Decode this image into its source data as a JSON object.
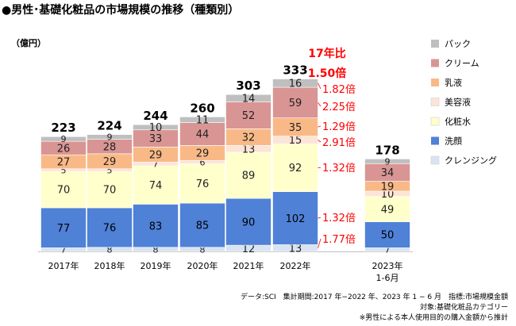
{
  "title": "●男性･基礎化粧品の市場規模の推移（種類別）",
  "unit_label": "（億円）",
  "colors": {
    "pack": "#bfbfbf",
    "cream": "#d99594",
    "milk": "#f9b987",
    "beauty": "#fce4d6",
    "lotion": "#ffffcc",
    "cleanser": "#4f81d6",
    "cleansing": "#d9e3f1",
    "red": "#ff0000"
  },
  "chart_data": {
    "type": "bar",
    "stacked": true,
    "ylabel": "（億円）",
    "categories": [
      "2017年",
      "2018年",
      "2019年",
      "2020年",
      "2021年",
      "2022年",
      "2023年\n1-6月"
    ],
    "totals": [
      223,
      224,
      244,
      260,
      303,
      333,
      178
    ],
    "series": [
      {
        "name": "クレンジング",
        "key": "cleansing",
        "values": [
          7,
          8,
          8,
          8,
          12,
          13,
          7
        ]
      },
      {
        "name": "洗顔",
        "key": "cleanser",
        "values": [
          77,
          76,
          83,
          85,
          90,
          102,
          50
        ]
      },
      {
        "name": "化粧水",
        "key": "lotion",
        "values": [
          70,
          70,
          74,
          76,
          89,
          92,
          49
        ]
      },
      {
        "name": "美容液",
        "key": "beauty",
        "values": [
          5,
          5,
          7,
          6,
          13,
          15,
          10
        ]
      },
      {
        "name": "乳液",
        "key": "milk",
        "values": [
          27,
          29,
          29,
          29,
          32,
          35,
          19
        ]
      },
      {
        "name": "クリーム",
        "key": "cream",
        "values": [
          26,
          28,
          33,
          44,
          52,
          59,
          34
        ]
      },
      {
        "name": "パック",
        "key": "pack",
        "values": [
          9,
          9,
          10,
          11,
          14,
          16,
          9
        ]
      }
    ],
    "legend_order": [
      "パック",
      "クリーム",
      "乳液",
      "美容液",
      "化粧水",
      "洗顔",
      "クレンジング"
    ],
    "legend_position": "right",
    "ratio_header": [
      "17年比",
      "1.50倍"
    ],
    "ratios": [
      {
        "series": "パック",
        "label": "1.82倍"
      },
      {
        "series": "クリーム",
        "label": "2.25倍"
      },
      {
        "series": "乳液",
        "label": "1.29倍"
      },
      {
        "series": "美容液",
        "label": "2.91倍"
      },
      {
        "series": "化粧水",
        "label": "1.32倍"
      },
      {
        "series": "洗顔",
        "label": "1.32倍"
      },
      {
        "series": "クレンジング",
        "label": "1.77倍"
      }
    ]
  },
  "footer": [
    "データ:SCI　集計期間:2017 年−2022 年、2023 年 1 − 6 月　指標:市場規模金額",
    "対象:基礎化粧品カテゴリー",
    "※男性による本人使用目的の購入金額から推計"
  ]
}
